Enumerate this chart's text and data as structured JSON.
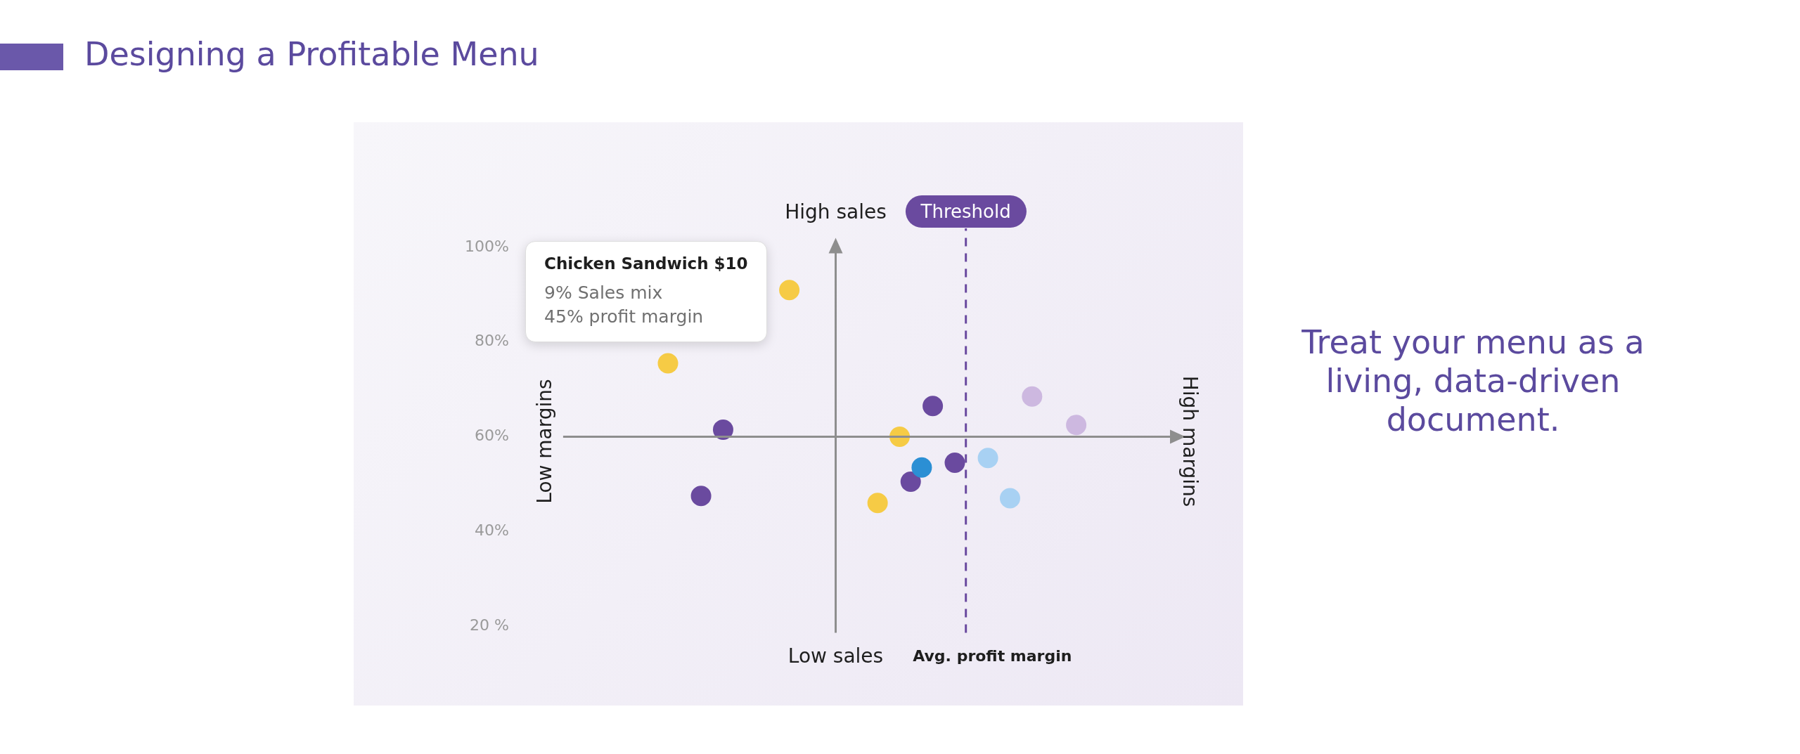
{
  "chart_data": {
    "type": "scatter",
    "title": "Designing a Profitable Menu",
    "marker": "circle",
    "legend": false,
    "grid": false,
    "tick_labels": "y",
    "categories": [
      null,
      null,
      null,
      null,
      null,
      null,
      null,
      null,
      null,
      null,
      null,
      null,
      null,
      null,
      null,
      null,
      null,
      null,
      null,
      null,
      null,
      null,
      null,
      null,
      null,
      null,
      null,
      null,
      null,
      null,
      null,
      null,
      null,
      null,
      null,
      null,
      null,
      null,
      null,
      null,
      null,
      null,
      null,
      null,
      null,
      null,
      null,
      null,
      null,
      null,
      null,
      null,
      null,
      null,
      null
    ],
    "values": [
      null,
      null,
      null,
      null,
      null,
      null,
      null,
      null,
      null,
      75.5,
      null,
      null,
      47.5,
      null,
      61.5,
      null,
      null,
      null,
      null,
      null,
      91,
      null,
      null,
      null,
      null,
      null,
      null,
      null,
      46,
      null,
      60,
      50.5,
      53.5,
      66.5,
      null,
      54.5,
      null,
      null,
      55.5,
      null,
      47,
      null,
      68.5,
      null,
      null,
      null,
      62.5,
      null,
      null,
      null,
      null,
      null,
      null,
      null,
      null
    ],
    "colors": [
      null,
      null,
      null,
      null,
      null,
      null,
      null,
      null,
      null,
      "#f6cb45",
      null,
      null,
      "#6a4a9f",
      null,
      "#6a4a9f",
      null,
      null,
      null,
      null,
      null,
      "#f6cb45",
      null,
      null,
      null,
      null,
      null,
      null,
      null,
      "#f6cb45",
      null,
      "#f6cb45",
      "#6a4a9f",
      "#2b8fd4",
      "#6a4a9f",
      null,
      "#6a4a9f",
      null,
      null,
      "#a8d1f3",
      null,
      "#a8d1f3",
      null,
      "#cdb8e0",
      null,
      null,
      null,
      "#cdb8e0",
      null,
      null,
      null,
      null,
      null,
      null,
      null,
      null
    ],
    "ylim": [
      20,
      100
    ],
    "yticks": [
      {
        "value": 20,
        "label": "20 %"
      },
      {
        "value": 40,
        "label": "40%"
      },
      {
        "value": 60,
        "label": "60%"
      },
      {
        "value": 80,
        "label": "80%"
      },
      {
        "value": 100,
        "label": "100%"
      }
    ],
    "annotations": [
      "High sales",
      "Low sales",
      "Low margins",
      "High margins",
      "Threshold",
      "Avg. profit margin",
      "Treat your menu as a living, data-driven document.",
      "Chicken Sandwich $10\n9% Sales mix\n45% profit margin"
    ],
    "ref_lines": [
      {
        "axis": "y",
        "value": 60,
        "color": "#8e8e8e"
      }
    ]
  }
}
